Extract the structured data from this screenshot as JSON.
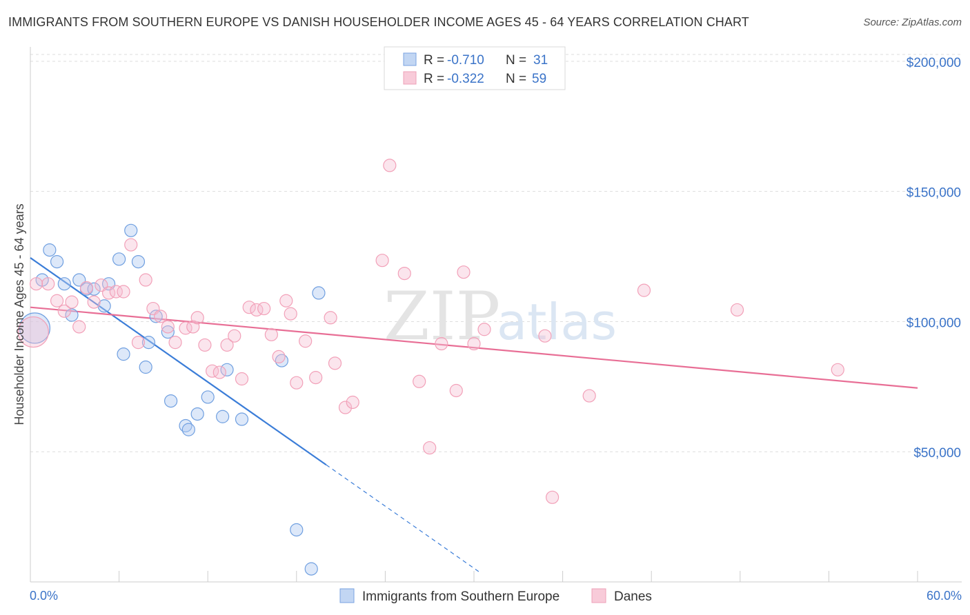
{
  "title": "IMMIGRANTS FROM SOUTHERN EUROPE VS DANISH HOUSEHOLDER INCOME AGES 45 - 64 YEARS CORRELATION CHART",
  "source": "Source: ZipAtlas.com",
  "watermark": {
    "zip": "ZIP",
    "atlas": "atlas"
  },
  "chart_data": {
    "type": "scatter",
    "xlabel": "",
    "ylabel": "Householder Income Ages 45 - 64 years",
    "xlim": [
      0,
      60
    ],
    "ylim": [
      0,
      205000
    ],
    "x_tick_labels": {
      "left": "0.0%",
      "right": "60.0%"
    },
    "y_ticks": [
      {
        "value": 200000,
        "label": "$200,000"
      },
      {
        "value": 150000,
        "label": "$150,000"
      },
      {
        "value": 100000,
        "label": "$100,000"
      },
      {
        "value": 50000,
        "label": "$50,000"
      }
    ],
    "series": [
      {
        "name": "Immigrants from Southern Europe",
        "color": "#6f9fe0",
        "line_color": "#3b7dd8",
        "R": "-0.710",
        "N": "31",
        "points": [
          [
            0.3,
            97500
          ],
          [
            1.3,
            127500
          ],
          [
            1.8,
            123000
          ],
          [
            0.8,
            116000
          ],
          [
            2.3,
            114500
          ],
          [
            3.3,
            116000
          ],
          [
            3.8,
            112500
          ],
          [
            4.3,
            112500
          ],
          [
            5.3,
            114500
          ],
          [
            5.0,
            106000
          ],
          [
            2.8,
            102500
          ],
          [
            6.0,
            124000
          ],
          [
            6.8,
            135000
          ],
          [
            7.3,
            123000
          ],
          [
            8.5,
            102000
          ],
          [
            9.3,
            96000
          ],
          [
            8.0,
            92000
          ],
          [
            6.3,
            87500
          ],
          [
            7.8,
            82500
          ],
          [
            13.3,
            81500
          ],
          [
            17.0,
            85000
          ],
          [
            19.5,
            111000
          ],
          [
            12.0,
            71000
          ],
          [
            9.5,
            69500
          ],
          [
            11.3,
            64500
          ],
          [
            13.0,
            63500
          ],
          [
            14.3,
            62500
          ],
          [
            10.5,
            60000
          ],
          [
            10.7,
            58500
          ],
          [
            18.0,
            20000
          ],
          [
            19.0,
            5000
          ]
        ],
        "trend": {
          "x0": 0,
          "y0": 124500,
          "x1": 20,
          "y1": 45000,
          "dash_to_x": 30.5
        }
      },
      {
        "name": "Danes",
        "color": "#f2a0b8",
        "line_color": "#e86e95",
        "R": "-0.322",
        "N": "59",
        "points": [
          [
            0.2,
            96000
          ],
          [
            1.2,
            114500
          ],
          [
            1.8,
            108000
          ],
          [
            2.3,
            104000
          ],
          [
            2.8,
            107500
          ],
          [
            3.3,
            98000
          ],
          [
            3.8,
            113000
          ],
          [
            4.3,
            107500
          ],
          [
            4.8,
            114000
          ],
          [
            5.3,
            111000
          ],
          [
            5.8,
            111500
          ],
          [
            6.3,
            111500
          ],
          [
            6.8,
            129500
          ],
          [
            7.8,
            116000
          ],
          [
            7.3,
            92000
          ],
          [
            8.3,
            105000
          ],
          [
            8.8,
            102000
          ],
          [
            9.3,
            98000
          ],
          [
            9.8,
            92000
          ],
          [
            10.5,
            97500
          ],
          [
            11.0,
            98000
          ],
          [
            11.3,
            101500
          ],
          [
            11.8,
            91000
          ],
          [
            12.3,
            81000
          ],
          [
            12.8,
            80500
          ],
          [
            13.3,
            91000
          ],
          [
            13.8,
            94500
          ],
          [
            14.3,
            78000
          ],
          [
            14.8,
            105500
          ],
          [
            15.3,
            104500
          ],
          [
            15.8,
            105000
          ],
          [
            16.3,
            95000
          ],
          [
            16.8,
            86500
          ],
          [
            17.3,
            108000
          ],
          [
            17.6,
            103000
          ],
          [
            18.0,
            76500
          ],
          [
            18.6,
            92500
          ],
          [
            19.3,
            78500
          ],
          [
            20.3,
            101500
          ],
          [
            20.6,
            84000
          ],
          [
            21.3,
            67000
          ],
          [
            21.8,
            69000
          ],
          [
            23.8,
            123500
          ],
          [
            24.3,
            160000
          ],
          [
            25.3,
            118500
          ],
          [
            26.3,
            77000
          ],
          [
            27.0,
            51500
          ],
          [
            27.8,
            91500
          ],
          [
            29.3,
            119000
          ],
          [
            28.8,
            73500
          ],
          [
            30.0,
            91500
          ],
          [
            30.7,
            97000
          ],
          [
            34.8,
            94500
          ],
          [
            35.3,
            32500
          ],
          [
            37.8,
            71500
          ],
          [
            41.5,
            112000
          ],
          [
            47.8,
            104500
          ],
          [
            54.6,
            81500
          ],
          [
            0.4,
            114500
          ]
        ],
        "trend": {
          "x0": 0,
          "y0": 105500,
          "x1": 60,
          "y1": 74500
        }
      }
    ]
  },
  "legend_labels": {
    "r": "R =",
    "n": "N ="
  }
}
